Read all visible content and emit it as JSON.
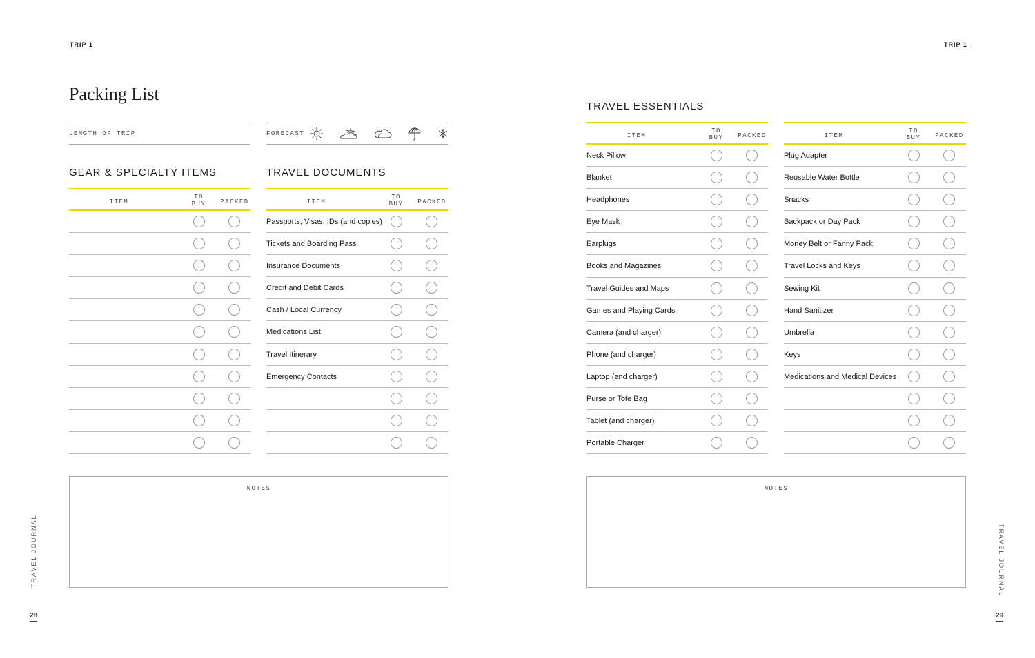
{
  "left_page": {
    "header": "TRIP 1",
    "title": "Packing List",
    "length_of_trip_label": "LENGTH OF TRIP",
    "forecast_label": "FORECAST",
    "forecast_icons": [
      "sun-icon",
      "partly-cloudy-icon",
      "cloud-icon",
      "umbrella-icon",
      "snowflake-icon"
    ],
    "gear": {
      "title": "GEAR & SPECIALTY ITEMS",
      "columns": [
        "ITEM",
        "TO BUY",
        "PACKED"
      ],
      "items": [
        "",
        "",
        "",
        "",
        "",
        "",
        "",
        "",
        "",
        "",
        ""
      ]
    },
    "documents": {
      "title": "TRAVEL DOCUMENTS",
      "columns": [
        "ITEM",
        "TO BUY",
        "PACKED"
      ],
      "items": [
        "Passports, Visas, IDs (and copies)",
        "Tickets and Boarding Pass",
        "Insurance Documents",
        "Credit and Debit Cards",
        "Cash / Local Currency",
        "Medications List",
        "Travel Itinerary",
        "Emergency Contacts",
        "",
        "",
        ""
      ]
    },
    "notes_label": "NOTES",
    "side_label": "TRAVEL JOURNAL",
    "page_number": "28"
  },
  "right_page": {
    "header": "TRIP 1",
    "title": "TRAVEL ESSENTIALS",
    "essentials_a": {
      "columns": [
        "ITEM",
        "TO BUY",
        "PACKED"
      ],
      "items": [
        "Neck Pillow",
        "Blanket",
        "Headphones",
        "Eye Mask",
        "Earplugs",
        "Books and Magazines",
        "Travel Guides and Maps",
        "Games and Playing Cards",
        "Camera (and charger)",
        "Phone (and charger)",
        "Laptop (and charger)",
        "Purse or Tote Bag",
        "Tablet (and charger)",
        "Portable Charger"
      ]
    },
    "essentials_b": {
      "columns": [
        "ITEM",
        "TO BUY",
        "PACKED"
      ],
      "items": [
        "Plug Adapter",
        "Reusable Water Bottle",
        "Snacks",
        "Backpack or Day Pack",
        "Money Belt or Fanny Pack",
        "Travel Locks and Keys",
        "Sewing Kit",
        "Hand Sanitizer",
        "Umbrella",
        "Keys",
        "Medications and Medical Devices",
        "",
        "",
        ""
      ]
    },
    "notes_label": "NOTES",
    "side_label": "TRAVEL JOURNAL",
    "page_number": "29"
  },
  "colors": {
    "accent": "#f2d600",
    "rule": "#bbbbbb"
  }
}
